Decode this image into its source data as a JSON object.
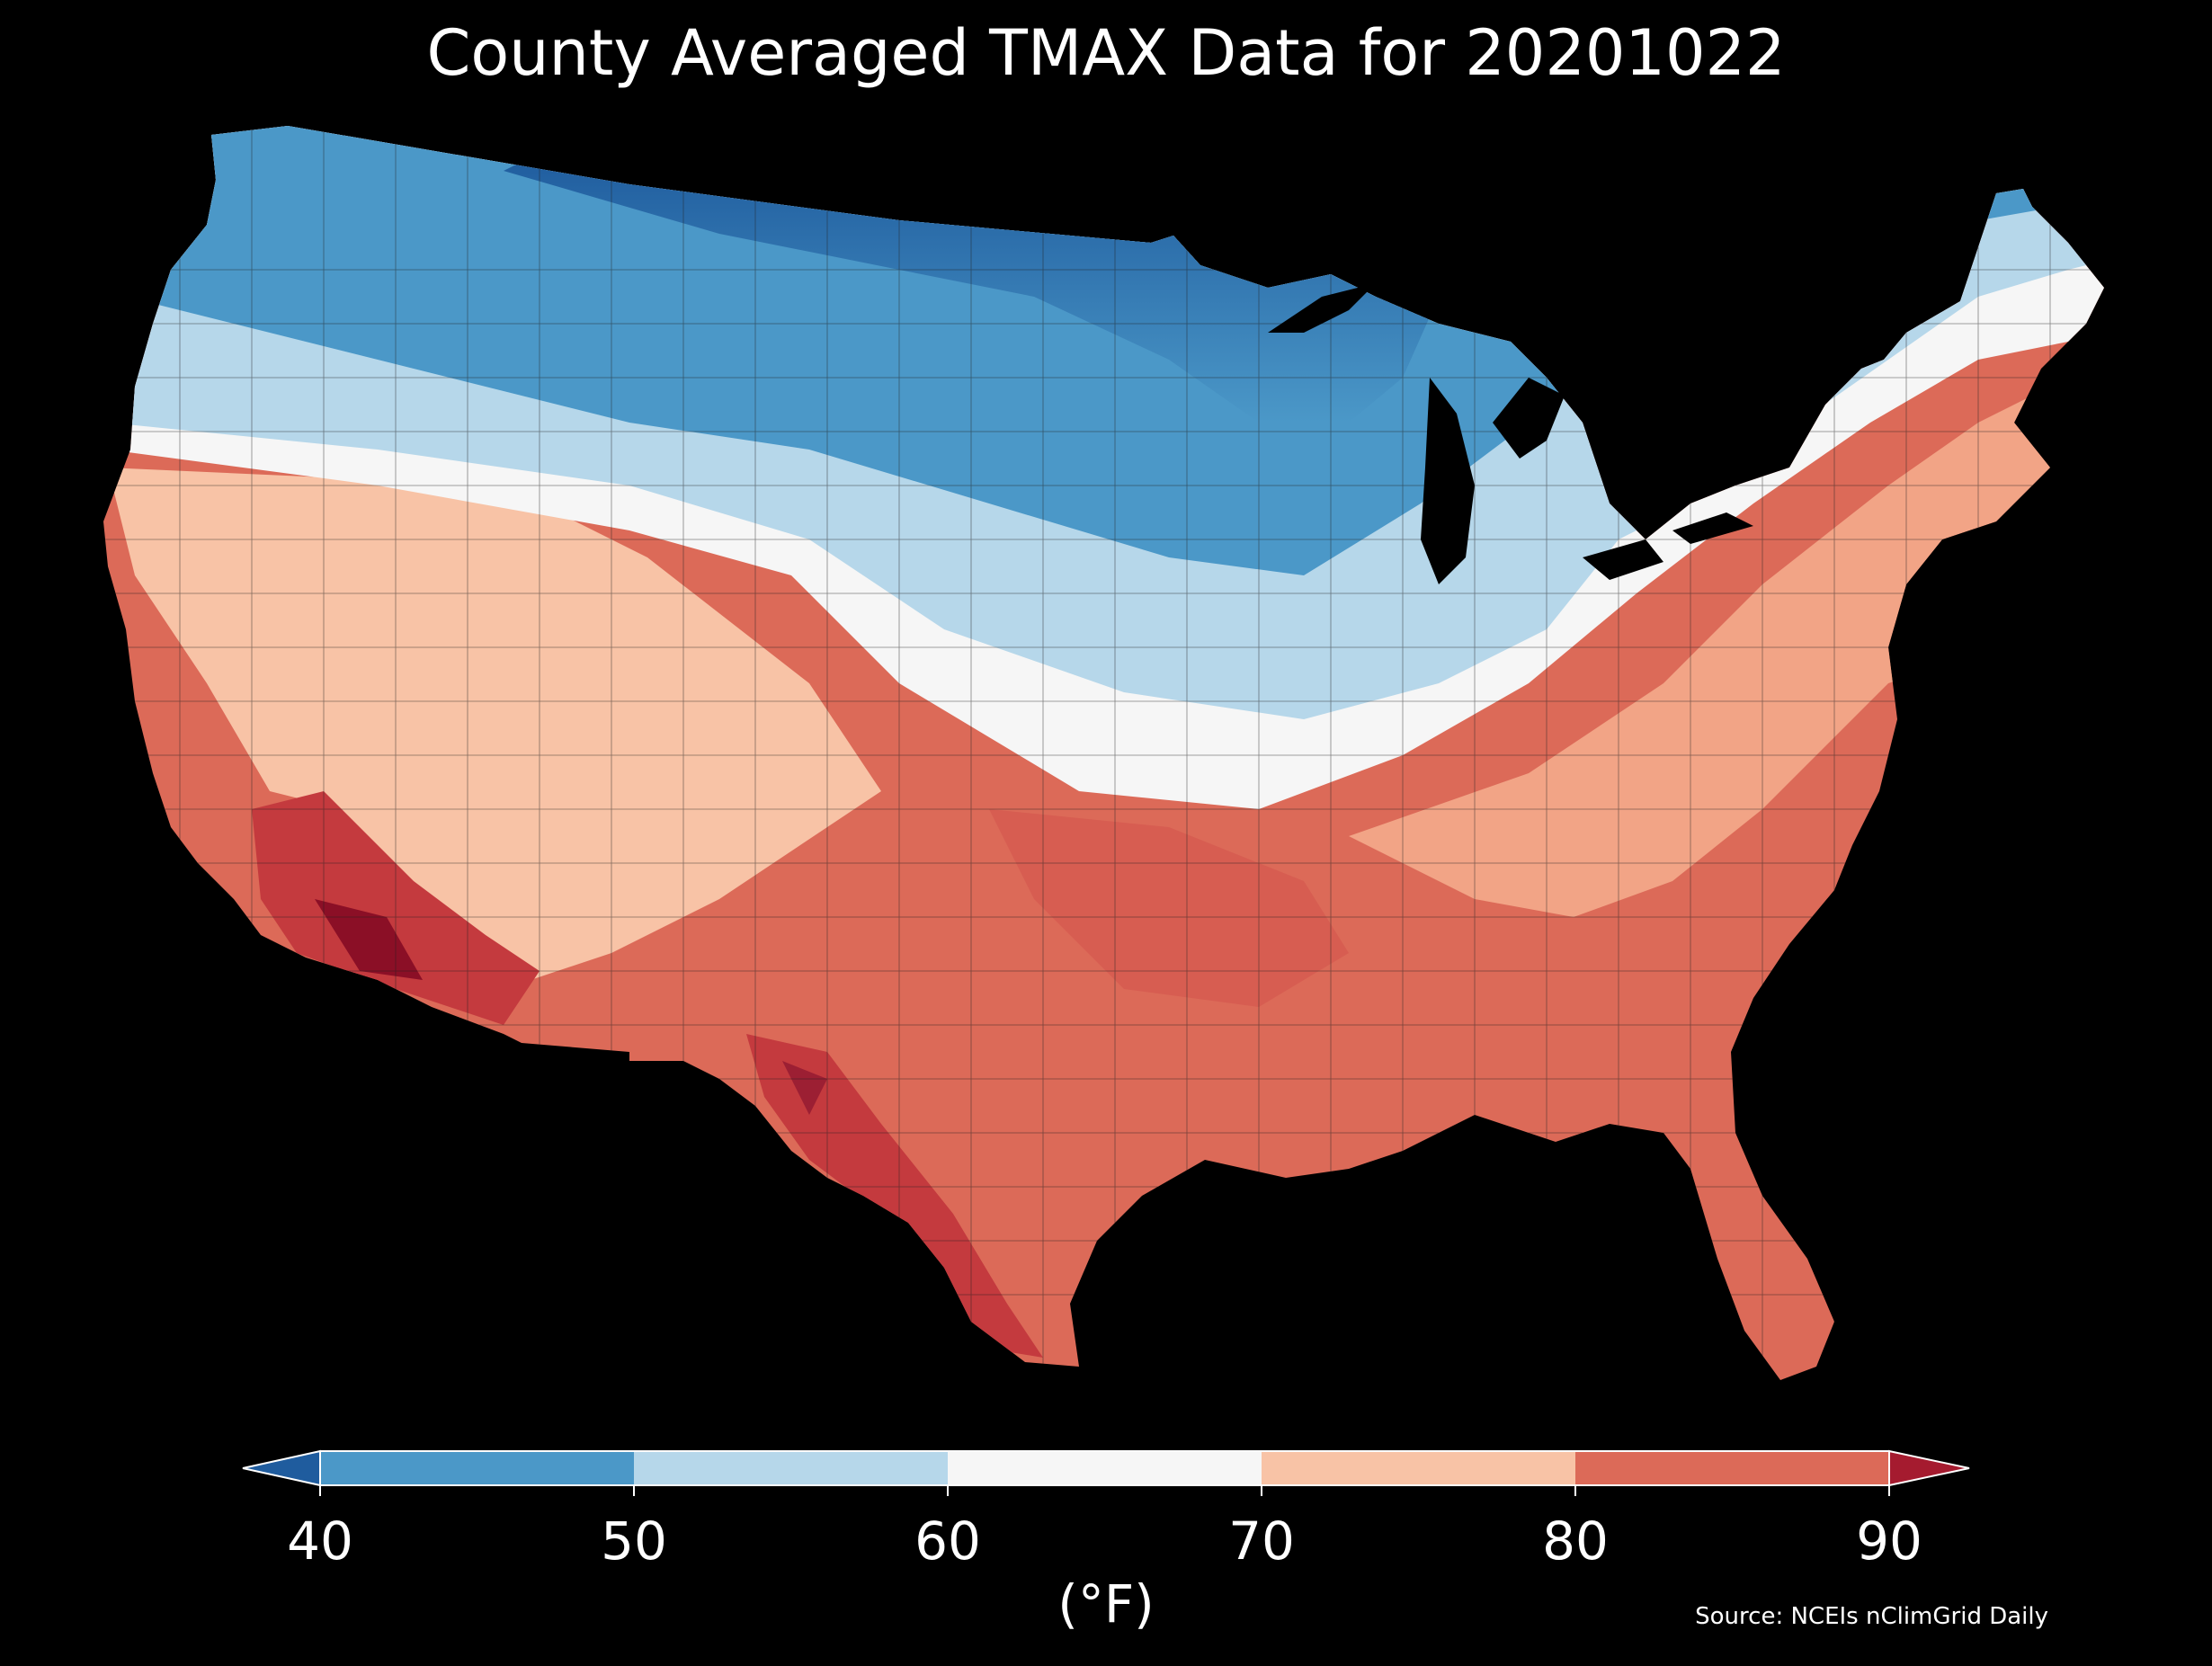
{
  "title": "County Averaged TMAX Data for 20201022",
  "colorbar": {
    "unit_label": "(°F)",
    "ticks": [
      "40",
      "50",
      "60",
      "70",
      "80",
      "90"
    ],
    "bins": [
      {
        "range": "<40",
        "color": "#1f5c9e"
      },
      {
        "range": "40-50",
        "color": "#4b98c8"
      },
      {
        "range": "50-60",
        "color": "#b6d7ea"
      },
      {
        "range": "60-70",
        "color": "#f6f6f6"
      },
      {
        "range": "70-80",
        "color": "#f8c3a6"
      },
      {
        "range": "80-90",
        "color": "#dc6a58"
      },
      {
        "range": ">90",
        "color": "#a51b2f"
      }
    ]
  },
  "source": "Source: NCEIs nClimGrid Daily",
  "map": {
    "region": "Contiguous United States",
    "pattern": "coldest in northern plains and upper Midwest, warmest in desert southwest and southern Texas"
  }
}
